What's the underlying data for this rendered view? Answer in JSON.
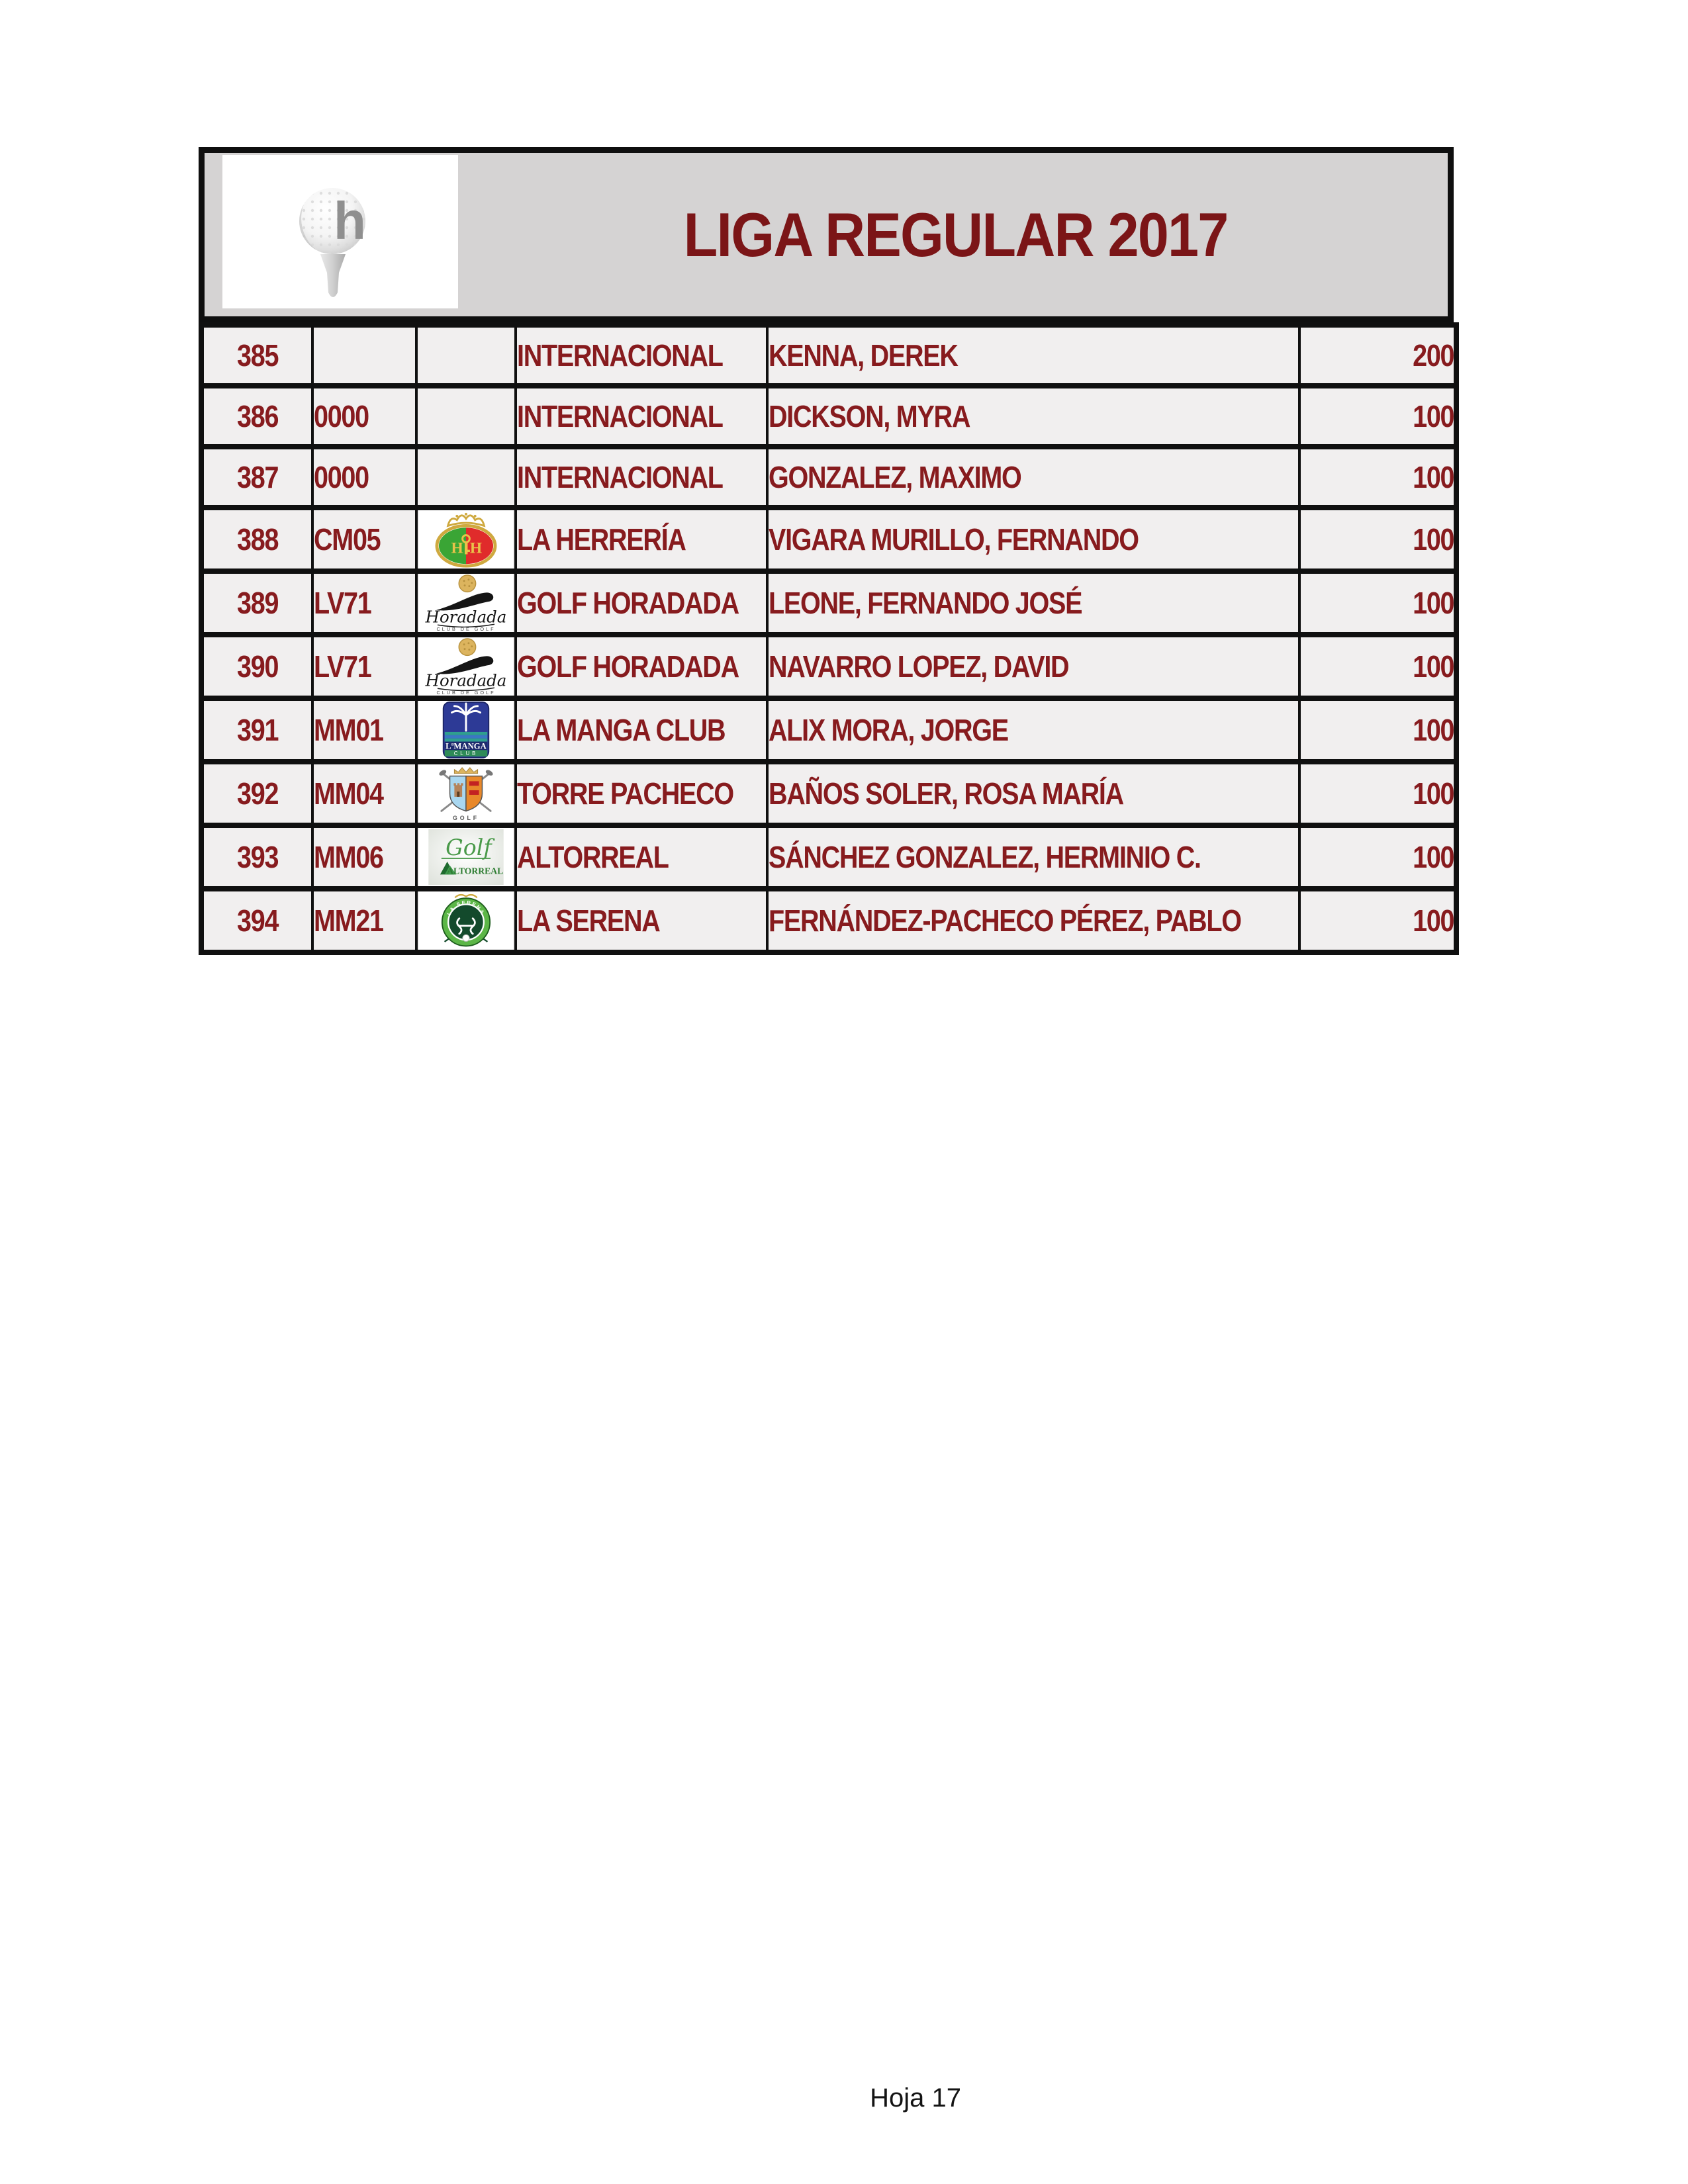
{
  "header": {
    "title": "LIGA REGULAR 2017",
    "logo_name": "golf-ball-on-tee-logo"
  },
  "table": {
    "columns": [
      "position",
      "club_code",
      "club_logo",
      "club_name",
      "player_name",
      "points"
    ],
    "rows": [
      {
        "position": "385",
        "club_code": "",
        "club_logo": "",
        "club_name": "INTERNACIONAL",
        "player_name": "KENNA, DEREK",
        "points": "200"
      },
      {
        "position": "386",
        "club_code": "0000",
        "club_logo": "",
        "club_name": "INTERNACIONAL",
        "player_name": "DICKSON, MYRA",
        "points": "100"
      },
      {
        "position": "387",
        "club_code": "0000",
        "club_logo": "",
        "club_name": "INTERNACIONAL",
        "player_name": "GONZALEZ, MAXIMO",
        "points": "100"
      },
      {
        "position": "388",
        "club_code": "CM05",
        "club_logo": "la-herreria-logo",
        "club_name": "LA HERRERÍA",
        "player_name": "VIGARA MURILLO, FERNANDO",
        "points": "100"
      },
      {
        "position": "389",
        "club_code": "LV71",
        "club_logo": "horadada-logo",
        "club_name": "GOLF HORADADA",
        "player_name": "LEONE, FERNANDO JOSÉ",
        "points": "100"
      },
      {
        "position": "390",
        "club_code": "LV71",
        "club_logo": "horadada-logo",
        "club_name": "GOLF HORADADA",
        "player_name": "NAVARRO LOPEZ, DAVID",
        "points": "100"
      },
      {
        "position": "391",
        "club_code": "MM01",
        "club_logo": "la-manga-logo",
        "club_name": "LA MANGA CLUB",
        "player_name": "ALIX MORA, JORGE",
        "points": "100"
      },
      {
        "position": "392",
        "club_code": "MM04",
        "club_logo": "torre-pacheco-logo",
        "club_name": "TORRE PACHECO",
        "player_name": "BAÑOS SOLER, ROSA MARÍA",
        "points": "100"
      },
      {
        "position": "393",
        "club_code": "MM06",
        "club_logo": "altorreal-logo",
        "club_name": "ALTORREAL",
        "player_name": "SÁNCHEZ GONZALEZ, HERMINIO C.",
        "points": "100"
      },
      {
        "position": "394",
        "club_code": "MM21",
        "club_logo": "la-serena-logo",
        "club_name": "LA SERENA",
        "player_name": "FERNÁNDEZ-PACHECO PÉREZ, PABLO",
        "points": "100"
      }
    ]
  },
  "footer": {
    "page_label": "Hoja 17"
  },
  "colors": {
    "title_maroon": "#7b1517",
    "cell_text_maroon": "#871b1e",
    "header_bg": "#d5d3d3",
    "cell_bg": "#f1efef",
    "border_black": "#101010"
  }
}
